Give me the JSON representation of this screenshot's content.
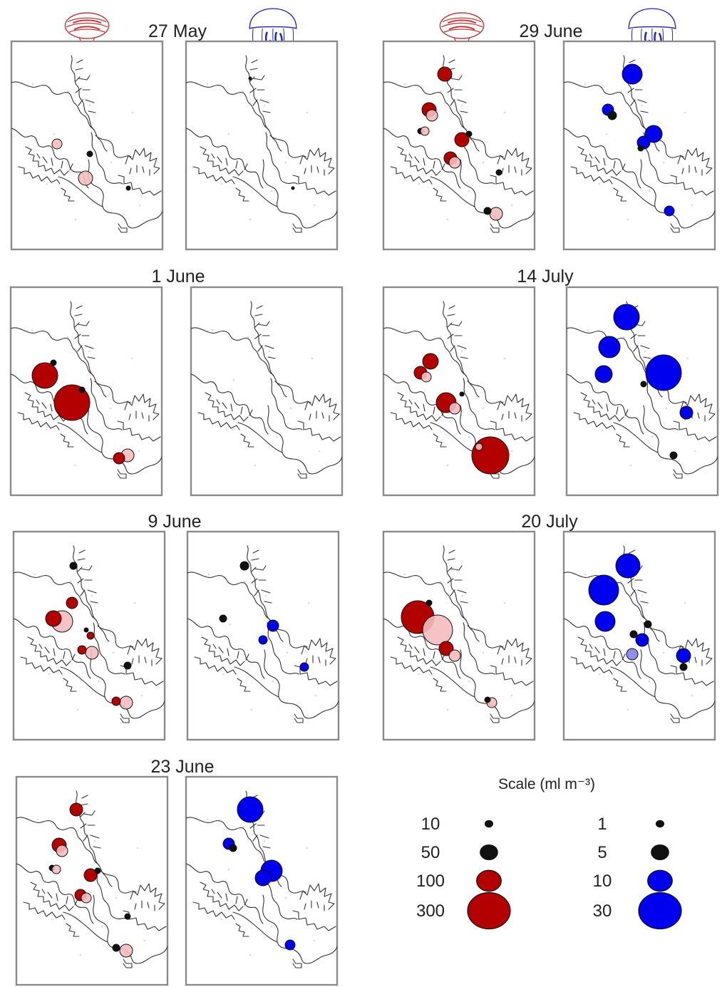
{
  "colors": {
    "ctenophore": "#b30000",
    "ctenophore_light": "#f4bcbc",
    "ctenophore_outline": "#c23a3a",
    "jellyfish": "#0000ee",
    "jellyfish_light": "#8f8ff0",
    "jellyfish_outline": "#2020cc",
    "small_dot": "#111111"
  },
  "icons": {
    "ctenophore": "ctenophore-icon",
    "jellyfish": "jellyfish-icon"
  },
  "dates": [
    {
      "label": "27 May"
    },
    {
      "label": "1 June"
    },
    {
      "label": "9 June"
    },
    {
      "label": "23 June"
    },
    {
      "label": "29 June"
    },
    {
      "label": "14 July"
    },
    {
      "label": "20 July"
    }
  ],
  "legend": {
    "title": "Scale (ml m⁻³)",
    "ctenophore_scale": [
      {
        "label": "10",
        "value": 10
      },
      {
        "label": "50",
        "value": 50
      },
      {
        "label": "100",
        "value": 100
      },
      {
        "label": "300",
        "value": 300
      }
    ],
    "jellyfish_scale": [
      {
        "label": "1",
        "value": 1
      },
      {
        "label": "5",
        "value": 5
      },
      {
        "label": "10",
        "value": 10
      },
      {
        "label": "30",
        "value": 30
      }
    ]
  }
}
